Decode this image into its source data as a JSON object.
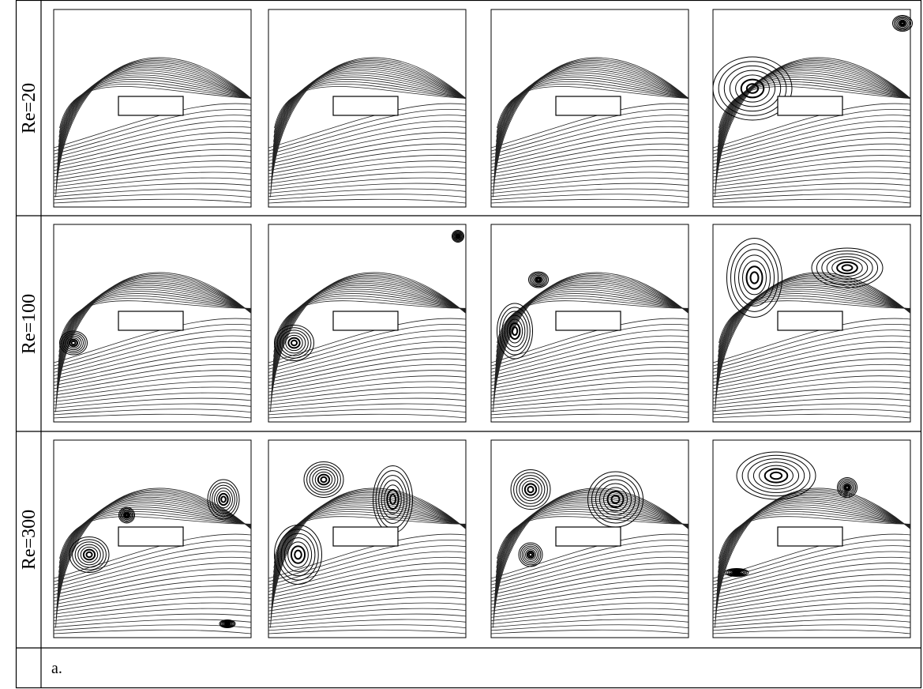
{
  "rows": [
    {
      "label": "Re=20"
    },
    {
      "label": "Re=100"
    },
    {
      "label": "Re=300"
    }
  ],
  "caption": "a."
}
